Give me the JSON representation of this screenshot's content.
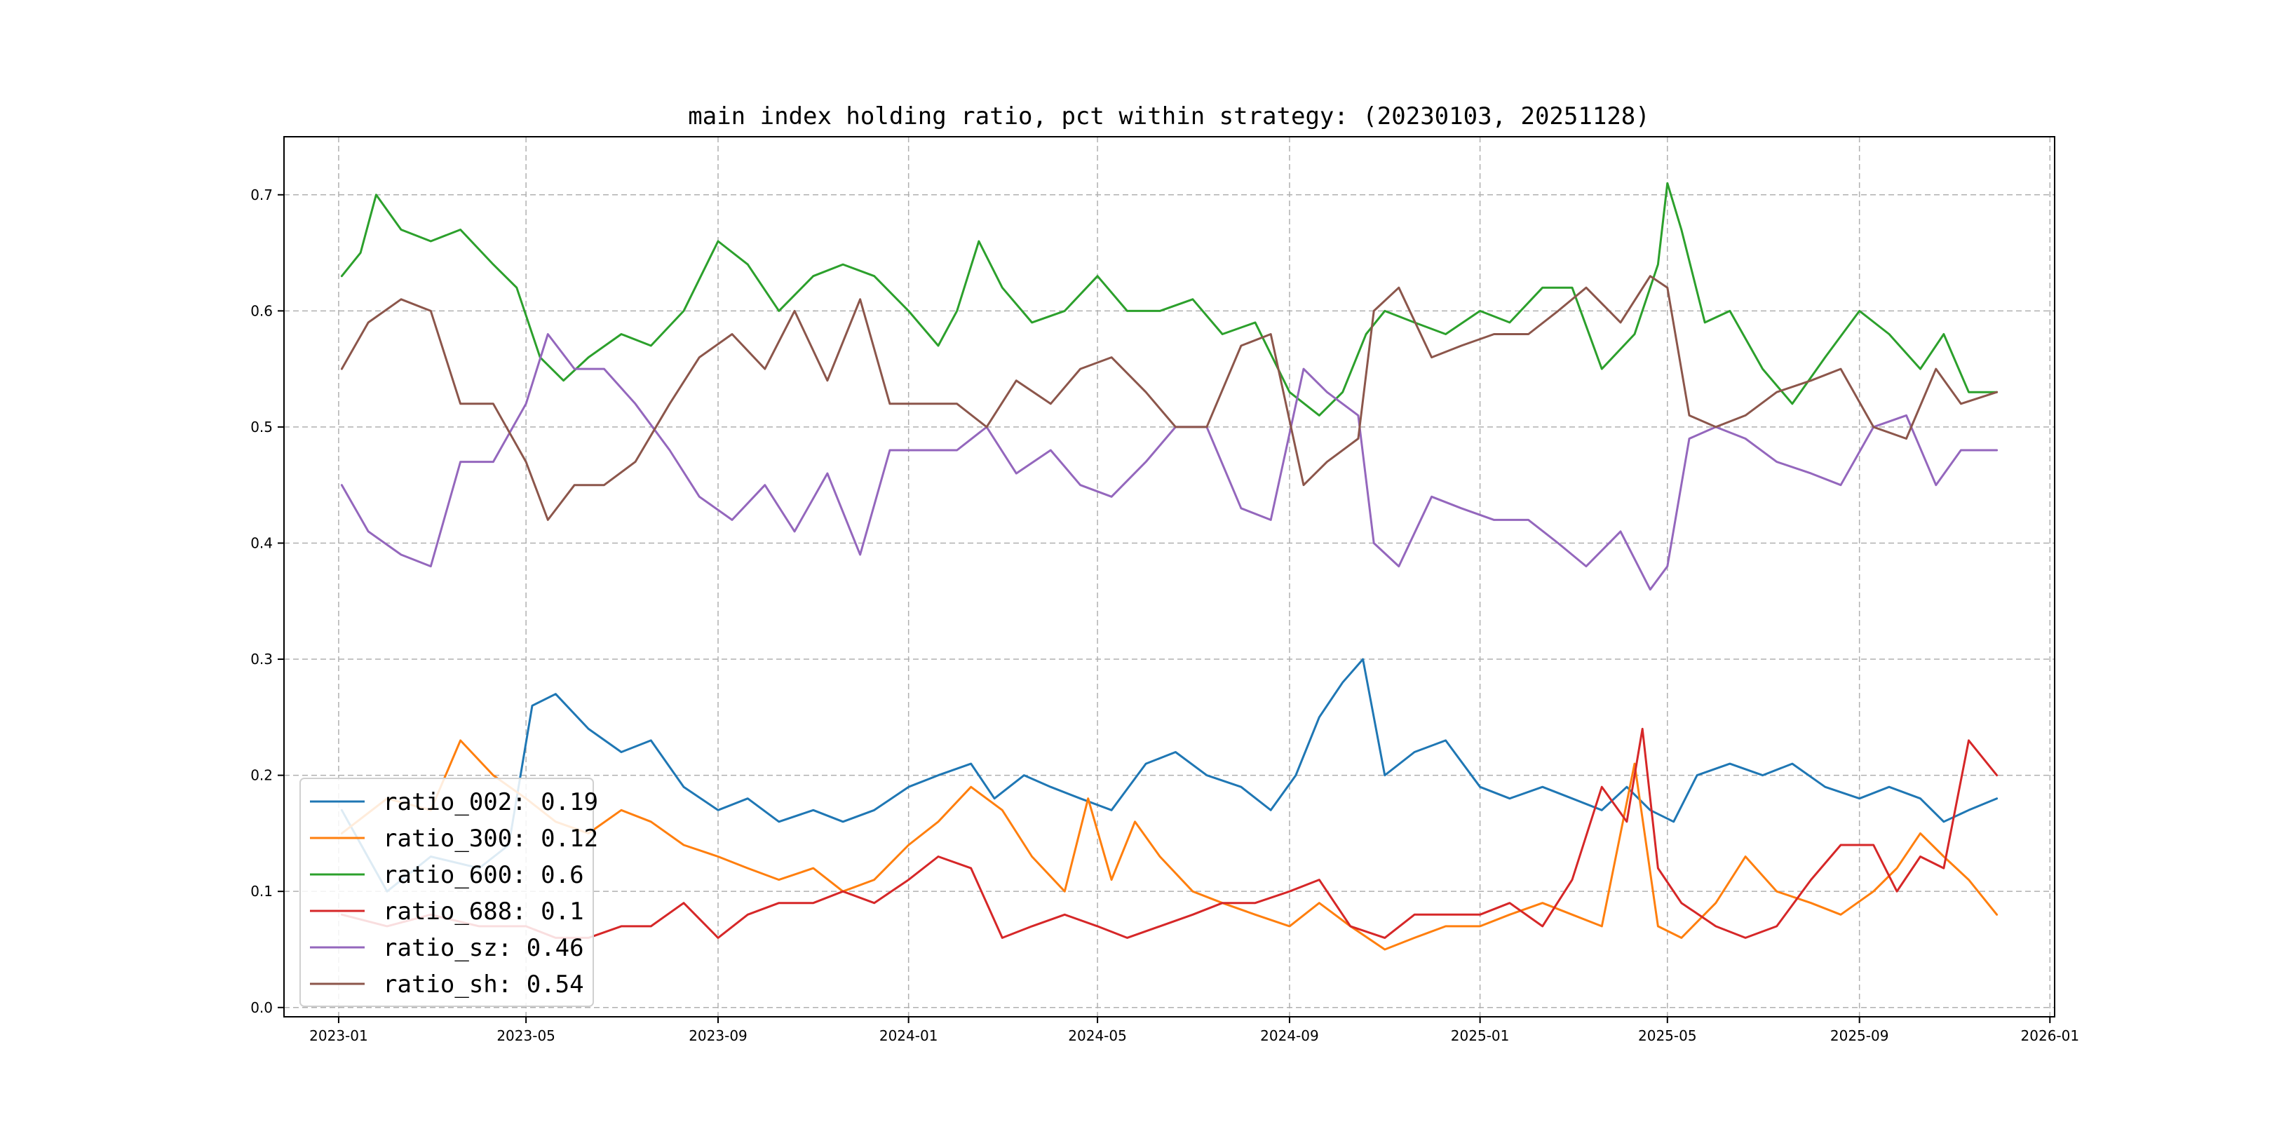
{
  "chart_data": {
    "type": "line",
    "title": "main index holding ratio, pct within strategy: (20230103, 20251128)",
    "xlabel": "",
    "ylabel": "",
    "x_range": [
      "2022-11-27",
      "2026-01-04"
    ],
    "ylim": [
      -0.008,
      0.75
    ],
    "grid": true,
    "legend_position": "lower-left",
    "x_ticks": [
      "2023-01",
      "2023-05",
      "2023-09",
      "2024-01",
      "2024-05",
      "2024-09",
      "2025-01",
      "2025-05",
      "2025-09",
      "2026-01"
    ],
    "x_tick_dates": [
      "2023-01-01",
      "2023-05-01",
      "2023-09-01",
      "2024-01-01",
      "2024-05-01",
      "2024-09-01",
      "2025-01-01",
      "2025-05-01",
      "2025-09-01",
      "2026-01-01"
    ],
    "y_ticks": [
      "0.0",
      "0.1",
      "0.2",
      "0.3",
      "0.4",
      "0.5",
      "0.6",
      "0.7"
    ],
    "y_tick_values": [
      0.0,
      0.1,
      0.2,
      0.3,
      0.4,
      0.5,
      0.6,
      0.7
    ],
    "series": [
      {
        "name": "ratio_002",
        "legend": "ratio_002: 0.19",
        "color": "#1f77b4",
        "x": [
          "2023-01-03",
          "2023-02-01",
          "2023-03-01",
          "2023-04-01",
          "2023-04-20",
          "2023-05-05",
          "2023-05-20",
          "2023-06-10",
          "2023-07-01",
          "2023-07-20",
          "2023-08-10",
          "2023-09-01",
          "2023-09-20",
          "2023-10-10",
          "2023-11-01",
          "2023-11-20",
          "2023-12-10",
          "2024-01-01",
          "2024-01-20",
          "2024-02-10",
          "2024-02-25",
          "2024-03-15",
          "2024-04-01",
          "2024-04-20",
          "2024-05-10",
          "2024-06-01",
          "2024-06-20",
          "2024-07-10",
          "2024-08-01",
          "2024-08-20",
          "2024-09-05",
          "2024-09-20",
          "2024-10-05",
          "2024-10-18",
          "2024-11-01",
          "2024-11-20",
          "2024-12-10",
          "2025-01-01",
          "2025-01-20",
          "2025-02-10",
          "2025-03-01",
          "2025-03-20",
          "2025-04-05",
          "2025-04-20",
          "2025-05-05",
          "2025-05-20",
          "2025-06-10",
          "2025-07-01",
          "2025-07-20",
          "2025-08-10",
          "2025-09-01",
          "2025-09-20",
          "2025-10-10",
          "2025-10-25",
          "2025-11-10",
          "2025-11-28"
        ],
        "values": [
          0.17,
          0.1,
          0.13,
          0.12,
          0.14,
          0.26,
          0.27,
          0.24,
          0.22,
          0.23,
          0.19,
          0.17,
          0.18,
          0.16,
          0.17,
          0.16,
          0.17,
          0.19,
          0.2,
          0.21,
          0.18,
          0.2,
          0.19,
          0.18,
          0.17,
          0.21,
          0.22,
          0.2,
          0.19,
          0.17,
          0.2,
          0.25,
          0.28,
          0.3,
          0.2,
          0.22,
          0.23,
          0.19,
          0.18,
          0.19,
          0.18,
          0.17,
          0.19,
          0.17,
          0.16,
          0.2,
          0.21,
          0.2,
          0.21,
          0.19,
          0.18,
          0.19,
          0.18,
          0.16,
          0.17,
          0.18
        ]
      },
      {
        "name": "ratio_300",
        "legend": "ratio_300: 0.12",
        "color": "#ff7f0e",
        "x": [
          "2023-01-03",
          "2023-02-01",
          "2023-03-01",
          "2023-03-20",
          "2023-04-10",
          "2023-05-01",
          "2023-05-20",
          "2023-06-10",
          "2023-07-01",
          "2023-07-20",
          "2023-08-10",
          "2023-09-01",
          "2023-09-20",
          "2023-10-10",
          "2023-11-01",
          "2023-11-20",
          "2023-12-10",
          "2024-01-01",
          "2024-01-20",
          "2024-02-10",
          "2024-03-01",
          "2024-03-20",
          "2024-04-10",
          "2024-04-25",
          "2024-05-10",
          "2024-05-25",
          "2024-06-10",
          "2024-07-01",
          "2024-07-20",
          "2024-08-10",
          "2024-09-01",
          "2024-09-20",
          "2024-10-10",
          "2024-11-01",
          "2024-11-20",
          "2024-12-10",
          "2025-01-01",
          "2025-01-20",
          "2025-02-10",
          "2025-03-01",
          "2025-03-20",
          "2025-04-10",
          "2025-04-25",
          "2025-05-10",
          "2025-06-01",
          "2025-06-20",
          "2025-07-10",
          "2025-08-01",
          "2025-08-20",
          "2025-09-10",
          "2025-09-25",
          "2025-10-10",
          "2025-10-25",
          "2025-11-10",
          "2025-11-28"
        ],
        "values": [
          0.15,
          0.18,
          0.17,
          0.23,
          0.2,
          0.18,
          0.16,
          0.15,
          0.17,
          0.16,
          0.14,
          0.13,
          0.12,
          0.11,
          0.12,
          0.1,
          0.11,
          0.14,
          0.16,
          0.19,
          0.17,
          0.13,
          0.1,
          0.18,
          0.11,
          0.16,
          0.13,
          0.1,
          0.09,
          0.08,
          0.07,
          0.09,
          0.07,
          0.05,
          0.06,
          0.07,
          0.07,
          0.08,
          0.09,
          0.08,
          0.07,
          0.21,
          0.07,
          0.06,
          0.09,
          0.13,
          0.1,
          0.09,
          0.08,
          0.1,
          0.12,
          0.15,
          0.13,
          0.11,
          0.08
        ]
      },
      {
        "name": "ratio_600",
        "legend": "ratio_600: 0.6",
        "color": "#2ca02c",
        "x": [
          "2023-01-03",
          "2023-01-15",
          "2023-01-25",
          "2023-02-10",
          "2023-03-01",
          "2023-03-20",
          "2023-04-10",
          "2023-04-25",
          "2023-05-10",
          "2023-05-25",
          "2023-06-10",
          "2023-07-01",
          "2023-07-20",
          "2023-08-10",
          "2023-09-01",
          "2023-09-20",
          "2023-10-10",
          "2023-11-01",
          "2023-11-20",
          "2023-12-10",
          "2024-01-01",
          "2024-01-20",
          "2024-02-01",
          "2024-02-15",
          "2024-03-01",
          "2024-03-20",
          "2024-04-10",
          "2024-05-01",
          "2024-05-20",
          "2024-06-10",
          "2024-07-01",
          "2024-07-20",
          "2024-08-10",
          "2024-09-01",
          "2024-09-20",
          "2024-10-05",
          "2024-10-20",
          "2024-11-01",
          "2024-11-20",
          "2024-12-10",
          "2025-01-01",
          "2025-01-20",
          "2025-02-10",
          "2025-03-01",
          "2025-03-20",
          "2025-04-10",
          "2025-04-25",
          "2025-05-01",
          "2025-05-10",
          "2025-05-25",
          "2025-06-10",
          "2025-07-01",
          "2025-07-20",
          "2025-08-10",
          "2025-09-01",
          "2025-09-20",
          "2025-10-10",
          "2025-10-25",
          "2025-11-10",
          "2025-11-28"
        ],
        "values": [
          0.63,
          0.65,
          0.7,
          0.67,
          0.66,
          0.67,
          0.64,
          0.62,
          0.56,
          0.54,
          0.56,
          0.58,
          0.57,
          0.6,
          0.66,
          0.64,
          0.6,
          0.63,
          0.64,
          0.63,
          0.6,
          0.57,
          0.6,
          0.66,
          0.62,
          0.59,
          0.6,
          0.63,
          0.6,
          0.6,
          0.61,
          0.58,
          0.59,
          0.53,
          0.51,
          0.53,
          0.58,
          0.6,
          0.59,
          0.58,
          0.6,
          0.59,
          0.62,
          0.62,
          0.55,
          0.58,
          0.64,
          0.71,
          0.67,
          0.59,
          0.6,
          0.55,
          0.52,
          0.56,
          0.6,
          0.58,
          0.55,
          0.58,
          0.53,
          0.53
        ]
      },
      {
        "name": "ratio_688",
        "legend": "ratio_688: 0.1",
        "color": "#d62728",
        "x": [
          "2023-01-03",
          "2023-02-01",
          "2023-03-01",
          "2023-04-01",
          "2023-05-01",
          "2023-05-20",
          "2023-06-10",
          "2023-07-01",
          "2023-07-20",
          "2023-08-10",
          "2023-09-01",
          "2023-09-20",
          "2023-10-10",
          "2023-11-01",
          "2023-11-20",
          "2023-12-10",
          "2024-01-01",
          "2024-01-20",
          "2024-02-10",
          "2024-03-01",
          "2024-03-20",
          "2024-04-10",
          "2024-05-01",
          "2024-05-20",
          "2024-06-10",
          "2024-07-01",
          "2024-07-20",
          "2024-08-10",
          "2024-09-01",
          "2024-09-20",
          "2024-10-10",
          "2024-11-01",
          "2024-11-20",
          "2024-12-10",
          "2025-01-01",
          "2025-01-20",
          "2025-02-10",
          "2025-03-01",
          "2025-03-20",
          "2025-04-05",
          "2025-04-15",
          "2025-04-25",
          "2025-05-10",
          "2025-06-01",
          "2025-06-20",
          "2025-07-10",
          "2025-08-01",
          "2025-08-20",
          "2025-09-10",
          "2025-09-25",
          "2025-10-10",
          "2025-10-25",
          "2025-11-10",
          "2025-11-28"
        ],
        "values": [
          0.08,
          0.07,
          0.08,
          0.07,
          0.07,
          0.06,
          0.06,
          0.07,
          0.07,
          0.09,
          0.06,
          0.08,
          0.09,
          0.09,
          0.1,
          0.09,
          0.11,
          0.13,
          0.12,
          0.06,
          0.07,
          0.08,
          0.07,
          0.06,
          0.07,
          0.08,
          0.09,
          0.09,
          0.1,
          0.11,
          0.07,
          0.06,
          0.08,
          0.08,
          0.08,
          0.09,
          0.07,
          0.11,
          0.19,
          0.16,
          0.24,
          0.12,
          0.09,
          0.07,
          0.06,
          0.07,
          0.11,
          0.14,
          0.14,
          0.1,
          0.13,
          0.12,
          0.23,
          0.2
        ]
      },
      {
        "name": "ratio_sz",
        "legend": "ratio_sz: 0.46",
        "color": "#9467bd",
        "x": [
          "2023-01-03",
          "2023-01-20",
          "2023-02-10",
          "2023-03-01",
          "2023-03-20",
          "2023-04-10",
          "2023-05-01",
          "2023-05-15",
          "2023-06-01",
          "2023-06-20",
          "2023-07-10",
          "2023-08-01",
          "2023-08-20",
          "2023-09-10",
          "2023-10-01",
          "2023-10-20",
          "2023-11-10",
          "2023-12-01",
          "2023-12-20",
          "2024-01-10",
          "2024-02-01",
          "2024-02-20",
          "2024-03-10",
          "2024-04-01",
          "2024-04-20",
          "2024-05-10",
          "2024-06-01",
          "2024-06-20",
          "2024-07-10",
          "2024-08-01",
          "2024-08-20",
          "2024-09-10",
          "2024-09-25",
          "2024-10-15",
          "2024-10-25",
          "2024-11-10",
          "2024-12-01",
          "2024-12-20",
          "2025-01-10",
          "2025-02-01",
          "2025-02-20",
          "2025-03-10",
          "2025-04-01",
          "2025-04-20",
          "2025-05-01",
          "2025-05-15",
          "2025-06-01",
          "2025-06-20",
          "2025-07-10",
          "2025-08-01",
          "2025-08-20",
          "2025-09-10",
          "2025-10-01",
          "2025-10-20",
          "2025-11-05",
          "2025-11-28"
        ],
        "values": [
          0.45,
          0.41,
          0.39,
          0.38,
          0.47,
          0.47,
          0.52,
          0.58,
          0.55,
          0.55,
          0.52,
          0.48,
          0.44,
          0.42,
          0.45,
          0.41,
          0.46,
          0.39,
          0.48,
          0.48,
          0.48,
          0.5,
          0.46,
          0.48,
          0.45,
          0.44,
          0.47,
          0.5,
          0.5,
          0.43,
          0.42,
          0.55,
          0.53,
          0.51,
          0.4,
          0.38,
          0.44,
          0.43,
          0.42,
          0.42,
          0.4,
          0.38,
          0.41,
          0.36,
          0.38,
          0.49,
          0.5,
          0.49,
          0.47,
          0.46,
          0.45,
          0.5,
          0.51,
          0.45,
          0.48,
          0.48
        ]
      },
      {
        "name": "ratio_sh",
        "legend": "ratio_sh: 0.54",
        "color": "#8c564b",
        "x": [
          "2023-01-03",
          "2023-01-20",
          "2023-02-10",
          "2023-03-01",
          "2023-03-20",
          "2023-04-10",
          "2023-05-01",
          "2023-05-15",
          "2023-06-01",
          "2023-06-20",
          "2023-07-10",
          "2023-08-01",
          "2023-08-20",
          "2023-09-10",
          "2023-10-01",
          "2023-10-20",
          "2023-11-10",
          "2023-12-01",
          "2023-12-20",
          "2024-01-10",
          "2024-02-01",
          "2024-02-20",
          "2024-03-10",
          "2024-04-01",
          "2024-04-20",
          "2024-05-10",
          "2024-06-01",
          "2024-06-20",
          "2024-07-10",
          "2024-08-01",
          "2024-08-20",
          "2024-09-10",
          "2024-09-25",
          "2024-10-15",
          "2024-10-25",
          "2024-11-10",
          "2024-12-01",
          "2024-12-20",
          "2025-01-10",
          "2025-02-01",
          "2025-02-20",
          "2025-03-10",
          "2025-04-01",
          "2025-04-20",
          "2025-05-01",
          "2025-05-15",
          "2025-06-01",
          "2025-06-20",
          "2025-07-10",
          "2025-08-01",
          "2025-08-20",
          "2025-09-10",
          "2025-10-01",
          "2025-10-20",
          "2025-11-05",
          "2025-11-28"
        ],
        "values": [
          0.55,
          0.59,
          0.61,
          0.6,
          0.52,
          0.52,
          0.47,
          0.42,
          0.45,
          0.45,
          0.47,
          0.52,
          0.56,
          0.58,
          0.55,
          0.6,
          0.54,
          0.61,
          0.52,
          0.52,
          0.52,
          0.5,
          0.54,
          0.52,
          0.55,
          0.56,
          0.53,
          0.5,
          0.5,
          0.57,
          0.58,
          0.45,
          0.47,
          0.49,
          0.6,
          0.62,
          0.56,
          0.57,
          0.58,
          0.58,
          0.6,
          0.62,
          0.59,
          0.63,
          0.62,
          0.51,
          0.5,
          0.51,
          0.53,
          0.54,
          0.55,
          0.5,
          0.49,
          0.55,
          0.52,
          0.53
        ]
      }
    ]
  }
}
